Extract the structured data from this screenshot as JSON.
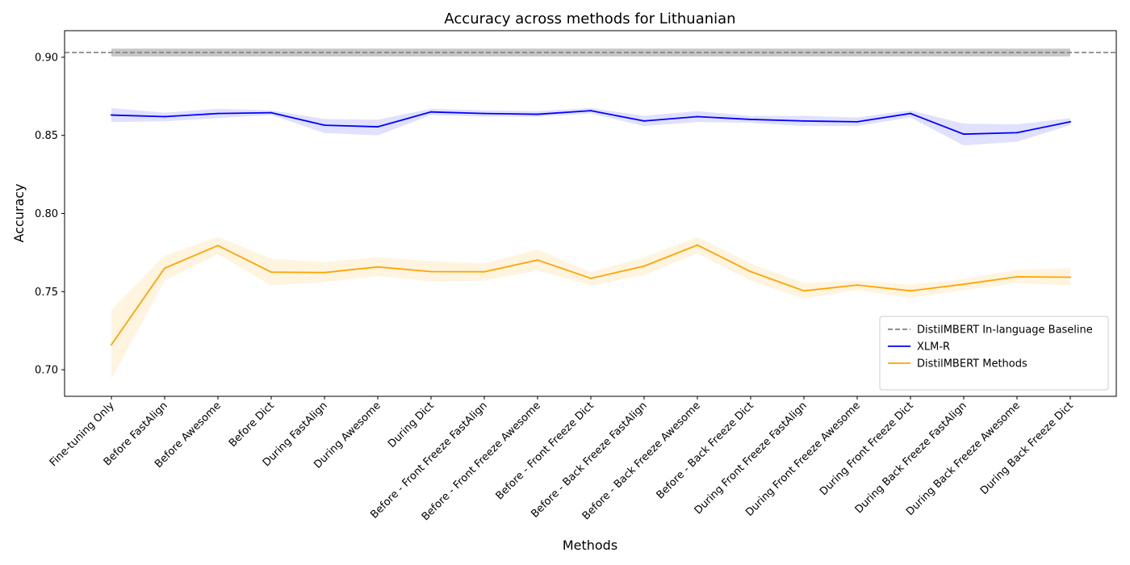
{
  "chart_data": {
    "type": "line",
    "title": "Accuracy across methods for Lithuanian",
    "xlabel": "Methods",
    "ylabel": "Accuracy",
    "ylim": [
      0.683,
      0.917
    ],
    "yticks": [
      0.7,
      0.75,
      0.8,
      0.85,
      0.9
    ],
    "ytick_labels": [
      "0.70",
      "0.75",
      "0.80",
      "0.85",
      "0.90"
    ],
    "grid": false,
    "legend_position": "lower-right",
    "categories": [
      "Fine-tuning Only",
      "Before FastAlign",
      "Before Awesome",
      "Before Dict",
      "During FastAlign",
      "During Awesome",
      "During Dict",
      "Before - Front Freeze FastAlign",
      "Before - Front Freeze Awesome",
      "Before - Front Freeze Dict",
      "Before - Back Freeze FastAlign",
      "Before - Back Freeze Awesome",
      "Before - Back Freeze Dict",
      "During Front Freeze FastAlign",
      "During Front Freeze Awesome",
      "During Front Freeze Dict",
      "During Back Freeze FastAlign",
      "During Back Freeze Awesome",
      "During Back Freeze Dict"
    ],
    "baseline": {
      "name": "DistilMBERT In-language Baseline",
      "value": 0.903,
      "band": [
        0.9005,
        0.9055
      ],
      "color": "#808080"
    },
    "series": [
      {
        "name": "XLM-R",
        "color": "#0000ff",
        "values": [
          0.863,
          0.862,
          0.864,
          0.8645,
          0.8565,
          0.8555,
          0.865,
          0.864,
          0.8635,
          0.8658,
          0.8592,
          0.862,
          0.8602,
          0.8592,
          0.8587,
          0.864,
          0.8508,
          0.8517,
          0.8587
        ],
        "lower": [
          0.8585,
          0.859,
          0.861,
          0.863,
          0.8515,
          0.85,
          0.863,
          0.862,
          0.862,
          0.864,
          0.856,
          0.8585,
          0.858,
          0.856,
          0.856,
          0.8615,
          0.8435,
          0.846,
          0.8565
        ],
        "upper": [
          0.8675,
          0.8645,
          0.867,
          0.866,
          0.8605,
          0.86,
          0.867,
          0.866,
          0.8655,
          0.8675,
          0.8625,
          0.8655,
          0.8625,
          0.8625,
          0.8615,
          0.866,
          0.8575,
          0.857,
          0.861
        ]
      },
      {
        "name": "DistilMBERT Methods",
        "color": "#ffa500",
        "values": [
          0.716,
          0.765,
          0.7795,
          0.7625,
          0.7622,
          0.7658,
          0.7628,
          0.7627,
          0.7702,
          0.7585,
          0.7663,
          0.7798,
          0.7628,
          0.7505,
          0.7542,
          0.7505,
          0.7547,
          0.7595,
          0.7592
        ],
        "lower": [
          0.694,
          0.757,
          0.774,
          0.754,
          0.756,
          0.76,
          0.7565,
          0.757,
          0.7635,
          0.754,
          0.7605,
          0.7745,
          0.757,
          0.7455,
          0.751,
          0.746,
          0.751,
          0.7555,
          0.754
        ],
        "upper": [
          0.7385,
          0.773,
          0.785,
          0.771,
          0.769,
          0.772,
          0.7695,
          0.768,
          0.777,
          0.7625,
          0.772,
          0.785,
          0.768,
          0.7555,
          0.757,
          0.7545,
          0.758,
          0.764,
          0.765
        ]
      }
    ]
  }
}
